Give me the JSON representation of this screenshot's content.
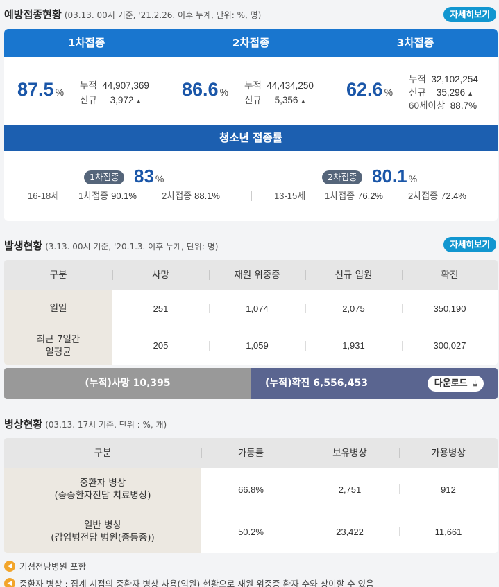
{
  "vaccination": {
    "title": "예방접종현황",
    "subtitle": "(03.13. 00시 기준, '21.2.26. 이후 누계, 단위: %, 명)",
    "more_label": "자세히보기",
    "doses": [
      {
        "label": "1차접종",
        "pct": "87.5",
        "cum_label": "누적",
        "cum": "44,907,369",
        "new_label": "신규",
        "new": "3,972"
      },
      {
        "label": "2차접종",
        "pct": "86.6",
        "cum_label": "누적",
        "cum": "44,434,250",
        "new_label": "신규",
        "new": "5,356"
      },
      {
        "label": "3차접종",
        "pct": "62.6",
        "cum_label": "누적",
        "cum": "32,102,254",
        "new_label": "신규",
        "new": "35,296",
        "senior_label": "60세이상",
        "senior": "88.7%"
      }
    ],
    "pct_unit": "%",
    "teen": {
      "title": "청소년 접종률",
      "groups": [
        {
          "age": "16-18세",
          "badge": "1차접종",
          "pct": "83",
          "first_label": "1차접종",
          "first": "90.1%",
          "second_label": "2차접종",
          "second": "88.1%"
        },
        {
          "age": "13-15세",
          "badge": "2차접종",
          "pct": "80.1",
          "first_label": "1차접종",
          "first": "76.2%",
          "second_label": "2차접종",
          "second": "72.4%"
        }
      ]
    }
  },
  "outbreak": {
    "title": "발생현황",
    "subtitle": "(3.13. 00시 기준, '20.1.3. 이후 누계, 단위: 명)",
    "more_label": "자세히보기",
    "headers": [
      "구분",
      "사망",
      "재원 위중증",
      "신규 입원",
      "확진"
    ],
    "rows": [
      {
        "label": "일일",
        "values": [
          "251",
          "1,074",
          "2,075",
          "350,190"
        ]
      },
      {
        "label": "최근 7일간\n일평균",
        "values": [
          "205",
          "1,059",
          "1,931",
          "300,027"
        ]
      }
    ],
    "cum_death": "(누적)사망  10,395",
    "cum_confirmed": "(누적)확진  6,556,453",
    "download_label": "다운로드"
  },
  "beds": {
    "title": "병상현황",
    "subtitle": "(03.13. 17시 기준, 단위 : %, 개)",
    "headers": [
      "구분",
      "가동률",
      "보유병상",
      "가용병상"
    ],
    "rows": [
      {
        "label": "중환자 병상\n(중증환자전담 치료병상)",
        "values": [
          "66.8%",
          "2,751",
          "912"
        ]
      },
      {
        "label": "일반 병상\n(감염병전담 병원(중등중))",
        "values": [
          "50.2%",
          "23,422",
          "11,661"
        ]
      }
    ],
    "notes": [
      "거점전담병원 포함",
      "중환자 병상 : 집계 시점의 중환자 병상 사용(입원) 현황으로 재원 위중증 환자 수와 상이할 수 있음"
    ]
  },
  "icons": {
    "up": "triangle-up-icon",
    "download": "download-icon",
    "note": "speaker-icon"
  }
}
